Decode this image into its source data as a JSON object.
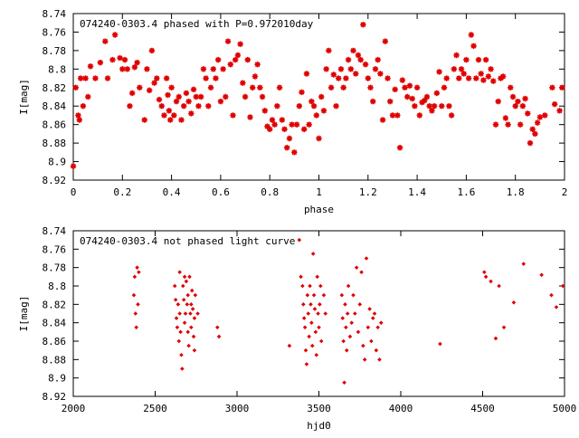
{
  "chart_data": [
    {
      "type": "scatter",
      "title": "074240-0303.4 phased with P=0.972010day",
      "xlabel": "phase",
      "ylabel": "I[mag]",
      "xlim": [
        0,
        2
      ],
      "ylim": [
        8.74,
        8.92
      ],
      "y_inverted": true,
      "grid": false,
      "marker": "asterisk",
      "color": "#e00000",
      "x_ticks": [
        "0",
        "0.2",
        "0.4",
        "0.6",
        "0.8",
        "1",
        "1.2",
        "1.4",
        "1.6",
        "1.8",
        "2"
      ],
      "y_ticks": [
        "8.74",
        "8.76",
        "8.78",
        "8.8",
        "8.82",
        "8.84",
        "8.86",
        "8.88",
        "8.9",
        "8.92"
      ],
      "points": [
        [
          0.0,
          8.905
        ],
        [
          0.01,
          8.82
        ],
        [
          0.02,
          8.85
        ],
        [
          0.025,
          8.855
        ],
        [
          0.03,
          8.81
        ],
        [
          0.04,
          8.84
        ],
        [
          0.05,
          8.81
        ],
        [
          0.06,
          8.83
        ],
        [
          0.07,
          8.797
        ],
        [
          0.09,
          8.81
        ],
        [
          0.11,
          8.793
        ],
        [
          0.13,
          8.77
        ],
        [
          0.14,
          8.81
        ],
        [
          0.16,
          8.79
        ],
        [
          0.17,
          8.763
        ],
        [
          0.19,
          8.788
        ],
        [
          0.2,
          8.8
        ],
        [
          0.21,
          8.79
        ],
        [
          0.22,
          8.8
        ],
        [
          0.23,
          8.84
        ],
        [
          0.24,
          8.826
        ],
        [
          0.25,
          8.798
        ],
        [
          0.26,
          8.793
        ],
        [
          0.27,
          8.82
        ],
        [
          0.29,
          8.855
        ],
        [
          0.3,
          8.8
        ],
        [
          0.31,
          8.823
        ],
        [
          0.32,
          8.78
        ],
        [
          0.33,
          8.815
        ],
        [
          0.34,
          8.81
        ],
        [
          0.35,
          8.833
        ],
        [
          0.36,
          8.84
        ],
        [
          0.37,
          8.85
        ],
        [
          0.38,
          8.81
        ],
        [
          0.385,
          8.828
        ],
        [
          0.39,
          8.845
        ],
        [
          0.395,
          8.855
        ],
        [
          0.4,
          8.82
        ],
        [
          0.41,
          8.85
        ],
        [
          0.42,
          8.835
        ],
        [
          0.43,
          8.83
        ],
        [
          0.44,
          8.855
        ],
        [
          0.45,
          8.84
        ],
        [
          0.46,
          8.826
        ],
        [
          0.47,
          8.835
        ],
        [
          0.48,
          8.848
        ],
        [
          0.49,
          8.822
        ],
        [
          0.5,
          8.83
        ],
        [
          0.51,
          8.84
        ],
        [
          0.52,
          8.83
        ],
        [
          0.53,
          8.8
        ],
        [
          0.54,
          8.81
        ],
        [
          0.55,
          8.84
        ],
        [
          0.56,
          8.82
        ],
        [
          0.57,
          8.8
        ],
        [
          0.58,
          8.81
        ],
        [
          0.59,
          8.79
        ],
        [
          0.6,
          8.835
        ],
        [
          0.61,
          8.8
        ],
        [
          0.62,
          8.83
        ],
        [
          0.63,
          8.77
        ],
        [
          0.64,
          8.795
        ],
        [
          0.65,
          8.85
        ],
        [
          0.66,
          8.79
        ],
        [
          0.67,
          8.785
        ],
        [
          0.68,
          8.773
        ],
        [
          0.69,
          8.815
        ],
        [
          0.7,
          8.83
        ],
        [
          0.71,
          8.79
        ],
        [
          0.72,
          8.852
        ],
        [
          0.73,
          8.82
        ],
        [
          0.74,
          8.808
        ],
        [
          0.75,
          8.795
        ],
        [
          0.76,
          8.82
        ],
        [
          0.77,
          8.83
        ],
        [
          0.78,
          8.845
        ],
        [
          0.79,
          8.862
        ],
        [
          0.8,
          8.865
        ],
        [
          0.81,
          8.855
        ],
        [
          0.82,
          8.86
        ],
        [
          0.83,
          8.84
        ],
        [
          0.84,
          8.82
        ],
        [
          0.85,
          8.855
        ],
        [
          0.86,
          8.865
        ],
        [
          0.87,
          8.885
        ],
        [
          0.88,
          8.875
        ],
        [
          0.89,
          8.86
        ],
        [
          0.9,
          8.89
        ],
        [
          0.91,
          8.86
        ],
        [
          0.92,
          8.84
        ],
        [
          0.93,
          8.825
        ],
        [
          0.94,
          8.865
        ],
        [
          0.95,
          8.805
        ],
        [
          0.96,
          8.86
        ],
        [
          0.97,
          8.835
        ],
        [
          0.98,
          8.84
        ],
        [
          0.99,
          8.85
        ],
        [
          1.0,
          8.875
        ],
        [
          1.01,
          8.83
        ],
        [
          1.02,
          8.845
        ],
        [
          1.03,
          8.8
        ],
        [
          1.04,
          8.78
        ],
        [
          1.05,
          8.82
        ],
        [
          1.06,
          8.806
        ],
        [
          1.07,
          8.84
        ],
        [
          1.08,
          8.81
        ],
        [
          1.09,
          8.8
        ],
        [
          1.1,
          8.82
        ],
        [
          1.11,
          8.81
        ],
        [
          1.12,
          8.79
        ],
        [
          1.13,
          8.8
        ],
        [
          1.14,
          8.78
        ],
        [
          1.15,
          8.805
        ],
        [
          1.16,
          8.785
        ],
        [
          1.17,
          8.79
        ],
        [
          1.18,
          8.752
        ],
        [
          1.19,
          8.795
        ],
        [
          1.2,
          8.81
        ],
        [
          1.21,
          8.82
        ],
        [
          1.22,
          8.835
        ],
        [
          1.23,
          8.8
        ],
        [
          1.24,
          8.79
        ],
        [
          1.25,
          8.805
        ],
        [
          1.26,
          8.855
        ],
        [
          1.27,
          8.77
        ],
        [
          1.28,
          8.81
        ],
        [
          1.29,
          8.835
        ],
        [
          1.3,
          8.85
        ],
        [
          1.31,
          8.822
        ],
        [
          1.32,
          8.85
        ],
        [
          1.33,
          8.885
        ],
        [
          1.34,
          8.812
        ],
        [
          1.35,
          8.82
        ],
        [
          1.36,
          8.83
        ],
        [
          1.37,
          8.818
        ],
        [
          1.38,
          8.832
        ],
        [
          1.39,
          8.84
        ],
        [
          1.4,
          8.82
        ],
        [
          1.41,
          8.85
        ],
        [
          1.42,
          8.836
        ],
        [
          1.43,
          8.834
        ],
        [
          1.44,
          8.83
        ],
        [
          1.45,
          8.84
        ],
        [
          1.46,
          8.845
        ],
        [
          1.47,
          8.84
        ],
        [
          1.48,
          8.826
        ],
        [
          1.49,
          8.803
        ],
        [
          1.5,
          8.84
        ],
        [
          1.51,
          8.82
        ],
        [
          1.52,
          8.81
        ],
        [
          1.53,
          8.84
        ],
        [
          1.54,
          8.85
        ],
        [
          1.55,
          8.8
        ],
        [
          1.56,
          8.785
        ],
        [
          1.57,
          8.81
        ],
        [
          1.58,
          8.8
        ],
        [
          1.59,
          8.805
        ],
        [
          1.6,
          8.79
        ],
        [
          1.61,
          8.81
        ],
        [
          1.62,
          8.763
        ],
        [
          1.63,
          8.775
        ],
        [
          1.64,
          8.81
        ],
        [
          1.65,
          8.79
        ],
        [
          1.66,
          8.805
        ],
        [
          1.67,
          8.812
        ],
        [
          1.68,
          8.79
        ],
        [
          1.69,
          8.808
        ],
        [
          1.7,
          8.8
        ],
        [
          1.71,
          8.813
        ],
        [
          1.72,
          8.86
        ],
        [
          1.73,
          8.835
        ],
        [
          1.74,
          8.81
        ],
        [
          1.75,
          8.808
        ],
        [
          1.76,
          8.853
        ],
        [
          1.77,
          8.86
        ],
        [
          1.78,
          8.82
        ],
        [
          1.79,
          8.83
        ],
        [
          1.8,
          8.84
        ],
        [
          1.81,
          8.835
        ],
        [
          1.82,
          8.86
        ],
        [
          1.83,
          8.84
        ],
        [
          1.84,
          8.832
        ],
        [
          1.85,
          8.848
        ],
        [
          1.86,
          8.88
        ],
        [
          1.87,
          8.865
        ],
        [
          1.88,
          8.87
        ],
        [
          1.89,
          8.858
        ],
        [
          1.9,
          8.852
        ],
        [
          1.92,
          8.85
        ],
        [
          1.95,
          8.82
        ],
        [
          1.96,
          8.838
        ],
        [
          1.98,
          8.845
        ],
        [
          1.99,
          8.82
        ]
      ]
    },
    {
      "type": "scatter",
      "title": "074240-0303.4 not phased light curve",
      "xlabel": "hjd0",
      "ylabel": "I[mag]",
      "xlim": [
        2000,
        5000
      ],
      "ylim": [
        8.74,
        8.92
      ],
      "y_inverted": true,
      "grid": false,
      "marker": "diamond",
      "color": "#e00000",
      "x_ticks": [
        "2000",
        "2500",
        "3000",
        "3500",
        "4000",
        "4500",
        "5000"
      ],
      "y_ticks": [
        "8.74",
        "8.76",
        "8.78",
        "8.8",
        "8.82",
        "8.84",
        "8.86",
        "8.88",
        "8.9",
        "8.92"
      ],
      "points": [
        [
          2370,
          8.81
        ],
        [
          2375,
          8.79
        ],
        [
          2380,
          8.83
        ],
        [
          2385,
          8.845
        ],
        [
          2390,
          8.78
        ],
        [
          2395,
          8.82
        ],
        [
          2400,
          8.785
        ],
        [
          2620,
          8.8
        ],
        [
          2625,
          8.815
        ],
        [
          2630,
          8.835
        ],
        [
          2635,
          8.845
        ],
        [
          2640,
          8.82
        ],
        [
          2645,
          8.86
        ],
        [
          2650,
          8.83
        ],
        [
          2655,
          8.85
        ],
        [
          2660,
          8.875
        ],
        [
          2665,
          8.89
        ],
        [
          2670,
          8.8
        ],
        [
          2675,
          8.815
        ],
        [
          2680,
          8.84
        ],
        [
          2685,
          8.83
        ],
        [
          2690,
          8.795
        ],
        [
          2695,
          8.82
        ],
        [
          2700,
          8.85
        ],
        [
          2705,
          8.865
        ],
        [
          2710,
          8.79
        ],
        [
          2715,
          8.83
        ],
        [
          2720,
          8.845
        ],
        [
          2725,
          8.805
        ],
        [
          2730,
          8.825
        ],
        [
          2735,
          8.855
        ],
        [
          2740,
          8.835
        ],
        [
          2745,
          8.81
        ],
        [
          2650,
          8.785
        ],
        [
          2680,
          8.79
        ],
        [
          2700,
          8.81
        ],
        [
          2720,
          8.82
        ],
        [
          2740,
          8.87
        ],
        [
          2760,
          8.83
        ],
        [
          2880,
          8.845
        ],
        [
          2890,
          8.855
        ],
        [
          3320,
          8.865
        ],
        [
          3380,
          8.75
        ],
        [
          3390,
          8.79
        ],
        [
          3400,
          8.8
        ],
        [
          3405,
          8.82
        ],
        [
          3410,
          8.835
        ],
        [
          3415,
          8.845
        ],
        [
          3420,
          8.87
        ],
        [
          3425,
          8.885
        ],
        [
          3430,
          8.81
        ],
        [
          3435,
          8.83
        ],
        [
          3440,
          8.855
        ],
        [
          3445,
          8.8
        ],
        [
          3450,
          8.82
        ],
        [
          3455,
          8.84
        ],
        [
          3460,
          8.865
        ],
        [
          3465,
          8.765
        ],
        [
          3470,
          8.81
        ],
        [
          3475,
          8.825
        ],
        [
          3480,
          8.85
        ],
        [
          3485,
          8.875
        ],
        [
          3490,
          8.79
        ],
        [
          3495,
          8.83
        ],
        [
          3500,
          8.845
        ],
        [
          3505,
          8.82
        ],
        [
          3510,
          8.8
        ],
        [
          3515,
          8.86
        ],
        [
          3530,
          8.81
        ],
        [
          3540,
          8.83
        ],
        [
          3640,
          8.81
        ],
        [
          3645,
          8.835
        ],
        [
          3650,
          8.86
        ],
        [
          3655,
          8.905
        ],
        [
          3660,
          8.82
        ],
        [
          3665,
          8.845
        ],
        [
          3670,
          8.87
        ],
        [
          3675,
          8.83
        ],
        [
          3680,
          8.8
        ],
        [
          3690,
          8.855
        ],
        [
          3700,
          8.84
        ],
        [
          3710,
          8.81
        ],
        [
          3720,
          8.83
        ],
        [
          3730,
          8.78
        ],
        [
          3740,
          8.85
        ],
        [
          3750,
          8.82
        ],
        [
          3760,
          8.785
        ],
        [
          3770,
          8.865
        ],
        [
          3780,
          8.88
        ],
        [
          3790,
          8.77
        ],
        [
          3800,
          8.845
        ],
        [
          3810,
          8.825
        ],
        [
          3820,
          8.86
        ],
        [
          3830,
          8.835
        ],
        [
          3840,
          8.83
        ],
        [
          3850,
          8.87
        ],
        [
          3860,
          8.845
        ],
        [
          3870,
          8.88
        ],
        [
          3880,
          8.84
        ],
        [
          4240,
          8.863
        ],
        [
          4510,
          8.785
        ],
        [
          4520,
          8.79
        ],
        [
          4550,
          8.795
        ],
        [
          4580,
          8.857
        ],
        [
          4600,
          8.8
        ],
        [
          4630,
          8.845
        ],
        [
          4690,
          8.818
        ],
        [
          4750,
          8.776
        ],
        [
          4860,
          8.788
        ],
        [
          4920,
          8.81
        ],
        [
          4950,
          8.823
        ],
        [
          4990,
          8.8
        ]
      ]
    }
  ]
}
